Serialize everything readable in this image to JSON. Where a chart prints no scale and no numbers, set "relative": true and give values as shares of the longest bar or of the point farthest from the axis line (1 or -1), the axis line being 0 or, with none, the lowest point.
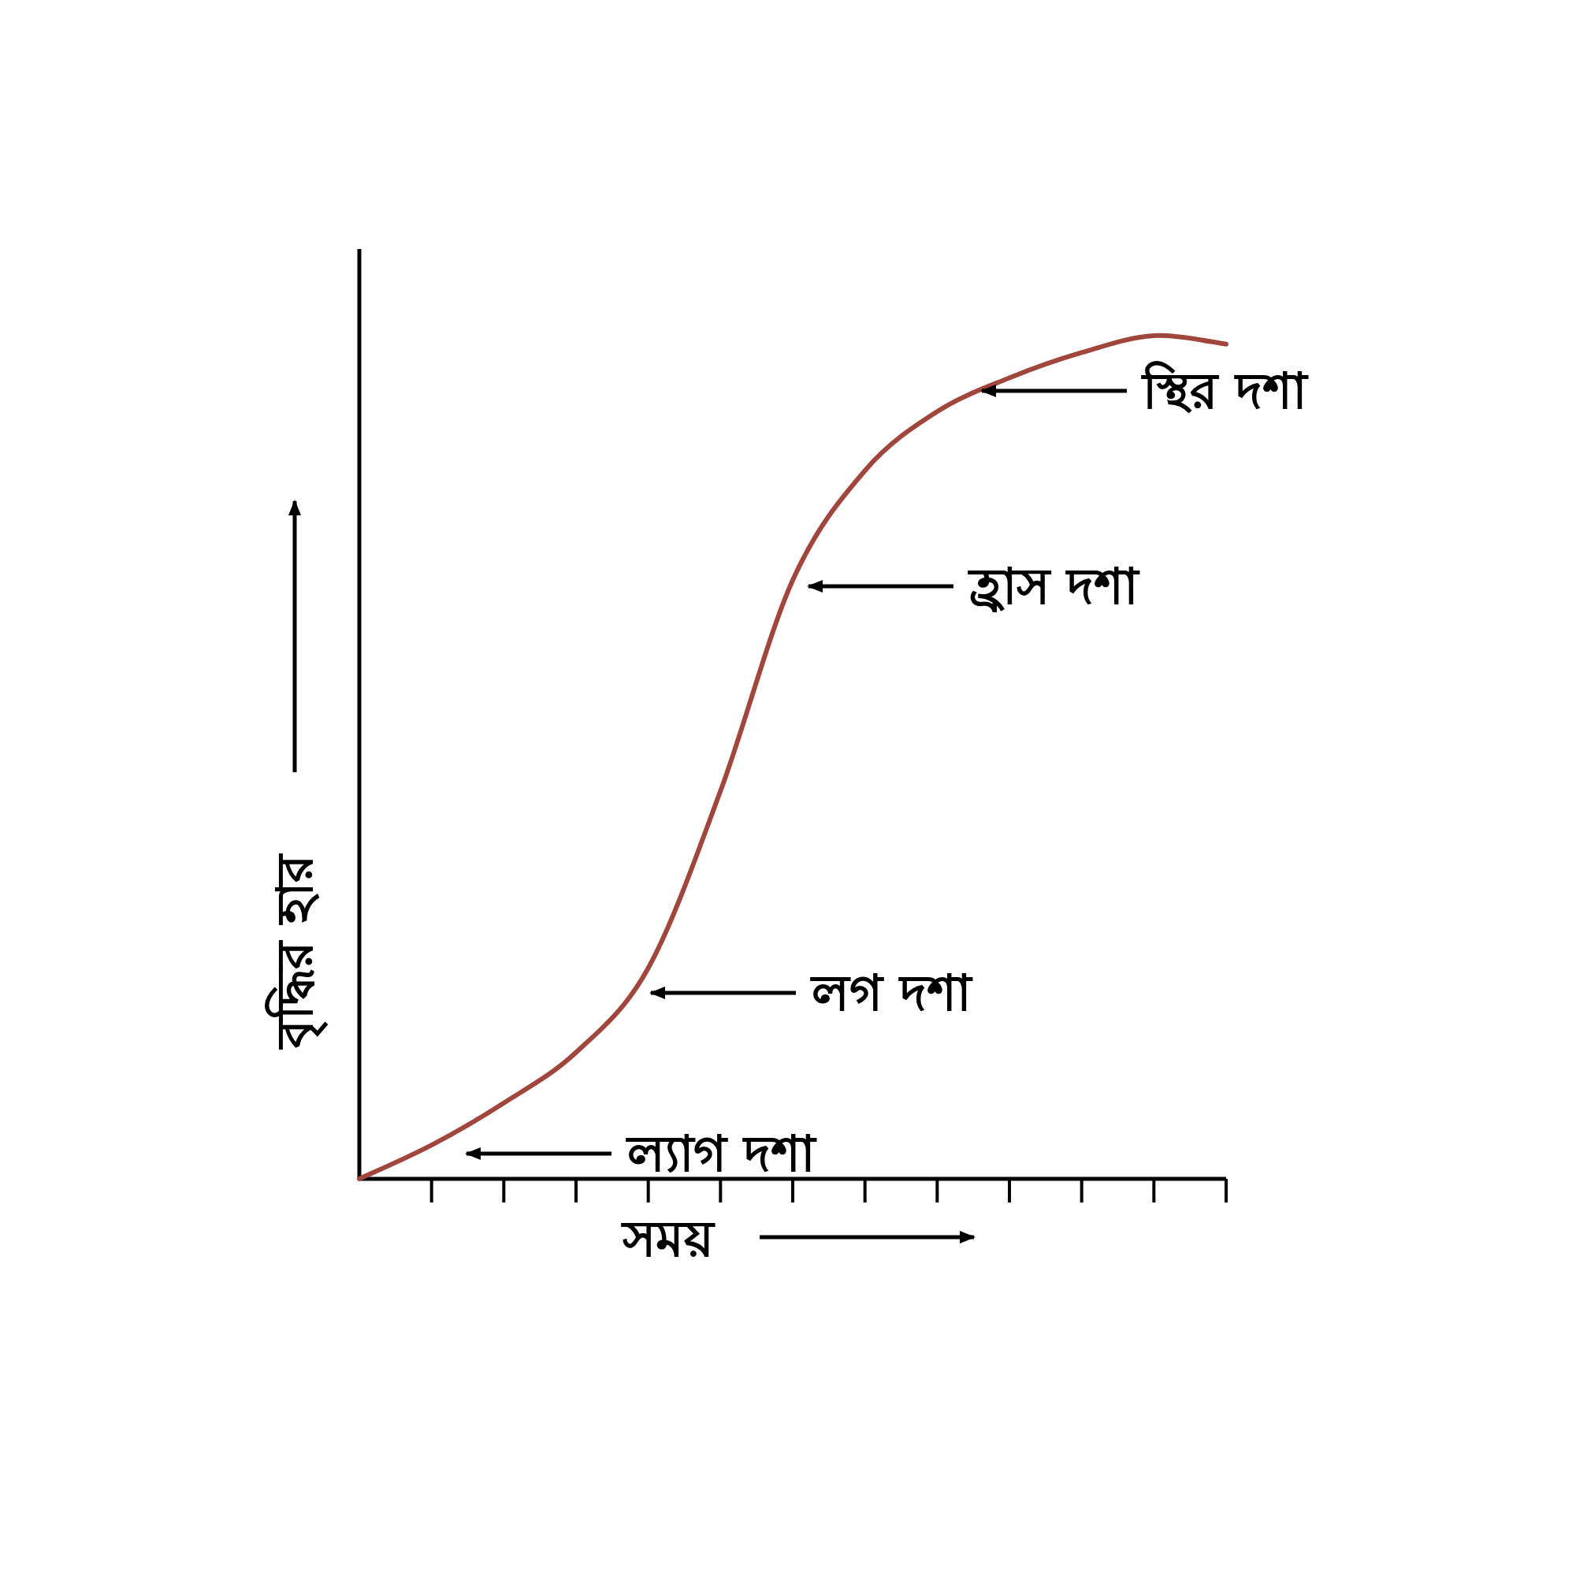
{
  "chart_data": {
    "type": "line",
    "relative": true,
    "xlabel": "সময়",
    "ylabel": "বৃদ্ধির হার",
    "color": "#a0463c",
    "marker": "none",
    "line_style": "solid",
    "categories": [
      null,
      null,
      null,
      null,
      null,
      null,
      null,
      null,
      null,
      null,
      null,
      null,
      null
    ],
    "values": [
      0,
      0.04,
      0.09,
      0.15,
      0.25,
      0.46,
      0.71,
      0.84,
      0.91,
      0.95,
      0.98,
      1.0,
      0.99
    ],
    "annotations": [
      "স্থির দশা",
      "হ্রাস দশা",
      "লগ দশা",
      "ল্যাগ দশা"
    ]
  }
}
